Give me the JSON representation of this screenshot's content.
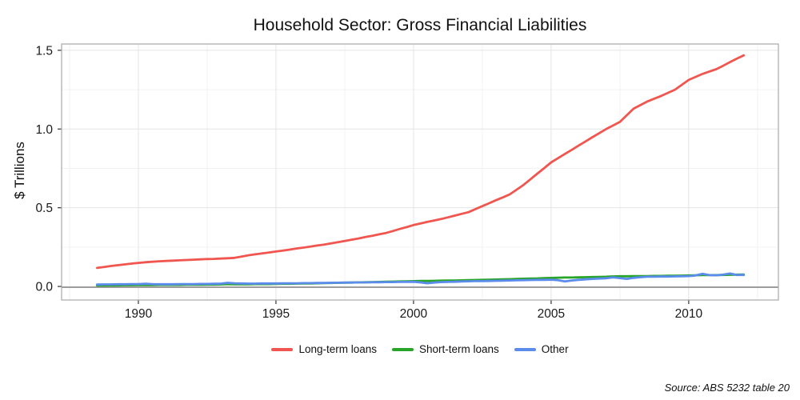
{
  "page": {
    "title": "Household Sector: Gross Financial Liabilities",
    "source_note": "Source: ABS 5232 table 20"
  },
  "colors": {
    "major_grid": "#e4e4e4",
    "minor_grid": "#f2f2f2",
    "border": "#a8a8a8",
    "zero_line": "#8c8c8c",
    "tick": "#333333",
    "text": "#1a1a1a"
  },
  "chart_data": {
    "type": "line",
    "title": "Household Sector: Gross Financial Liabilities",
    "xlabel": "",
    "ylabel": "$ Trillions",
    "xlim": [
      1987.21,
      2013.26
    ],
    "ylim": [
      -0.086,
      1.54
    ],
    "grid": true,
    "legend_position": "bottom",
    "x_ticks": [
      1990,
      1995,
      2000,
      2005,
      2010
    ],
    "x_tick_labels": [
      "1990",
      "1995",
      "2000",
      "2005",
      "2010"
    ],
    "x_minor_ticks": [
      1987.5,
      1992.5,
      1997.5,
      2002.5,
      2007.5,
      2012.5
    ],
    "y_ticks": [
      0.0,
      0.5,
      1.0,
      1.5
    ],
    "y_tick_labels": [
      "0.0",
      "0.5",
      "1.0",
      "1.5"
    ],
    "y_minor_ticks": [
      0.25,
      0.75,
      1.25
    ],
    "x": [
      1988.5,
      1988.75,
      1989,
      1989.25,
      1989.5,
      1989.75,
      1990,
      1990.25,
      1990.5,
      1990.75,
      1991,
      1991.25,
      1991.5,
      1991.75,
      1992,
      1992.25,
      1992.5,
      1992.75,
      1993,
      1993.25,
      1993.5,
      1993.75,
      1994,
      1994.25,
      1994.5,
      1994.75,
      1995,
      1995.25,
      1995.5,
      1995.75,
      1996,
      1996.25,
      1996.5,
      1996.75,
      1997,
      1997.25,
      1997.5,
      1997.75,
      1998,
      1998.25,
      1998.5,
      1998.75,
      1999,
      1999.25,
      1999.5,
      1999.75,
      2000,
      2000.25,
      2000.5,
      2000.75,
      2001,
      2001.25,
      2001.5,
      2001.75,
      2002,
      2002.25,
      2002.5,
      2002.75,
      2003,
      2003.25,
      2003.5,
      2003.75,
      2004,
      2004.25,
      2004.5,
      2004.75,
      2005,
      2005.25,
      2005.5,
      2005.75,
      2006,
      2006.25,
      2006.5,
      2006.75,
      2007,
      2007.25,
      2007.5,
      2007.75,
      2008,
      2008.25,
      2008.5,
      2008.75,
      2009,
      2009.25,
      2009.5,
      2009.75,
      2010,
      2010.25,
      2010.5,
      2010.75,
      2011,
      2011.25,
      2011.5,
      2011.75,
      2012
    ],
    "series": [
      {
        "name": "Long-term loans",
        "color": "#f0564f",
        "values": [
          0.118,
          0.124,
          0.13,
          0.135,
          0.14,
          0.145,
          0.15,
          0.154,
          0.157,
          0.16,
          0.162,
          0.164,
          0.166,
          0.168,
          0.17,
          0.172,
          0.174,
          0.175,
          0.177,
          0.179,
          0.182,
          0.19,
          0.198,
          0.204,
          0.21,
          0.216,
          0.222,
          0.228,
          0.234,
          0.241,
          0.247,
          0.253,
          0.26,
          0.266,
          0.273,
          0.281,
          0.289,
          0.297,
          0.305,
          0.314,
          0.322,
          0.331,
          0.34,
          0.352,
          0.365,
          0.377,
          0.39,
          0.4,
          0.41,
          0.419,
          0.428,
          0.439,
          0.45,
          0.461,
          0.472,
          0.491,
          0.51,
          0.529,
          0.548,
          0.566,
          0.585,
          0.615,
          0.645,
          0.681,
          0.717,
          0.752,
          0.788,
          0.815,
          0.842,
          0.868,
          0.895,
          0.921,
          0.948,
          0.974,
          1.0,
          1.022,
          1.045,
          1.088,
          1.13,
          1.153,
          1.175,
          1.193,
          1.21,
          1.23,
          1.25,
          1.281,
          1.312,
          1.331,
          1.35,
          1.365,
          1.38,
          1.402,
          1.425,
          1.447,
          1.468
        ]
      },
      {
        "name": "Short-term loans",
        "color": "#28a428",
        "values": [
          0.006,
          0.006,
          0.007,
          0.007,
          0.008,
          0.008,
          0.009,
          0.009,
          0.009,
          0.01,
          0.01,
          0.01,
          0.01,
          0.011,
          0.011,
          0.011,
          0.012,
          0.012,
          0.013,
          0.015,
          0.014,
          0.014,
          0.014,
          0.015,
          0.015,
          0.015,
          0.016,
          0.017,
          0.017,
          0.018,
          0.019,
          0.019,
          0.02,
          0.021,
          0.022,
          0.023,
          0.024,
          0.025,
          0.026,
          0.027,
          0.028,
          0.029,
          0.03,
          0.031,
          0.032,
          0.033,
          0.034,
          0.035,
          0.035,
          0.036,
          0.037,
          0.038,
          0.038,
          0.039,
          0.04,
          0.041,
          0.042,
          0.043,
          0.044,
          0.045,
          0.046,
          0.048,
          0.049,
          0.05,
          0.051,
          0.053,
          0.054,
          0.056,
          0.057,
          0.057,
          0.058,
          0.059,
          0.06,
          0.061,
          0.062,
          0.064,
          0.065,
          0.065,
          0.066,
          0.066,
          0.066,
          0.067,
          0.067,
          0.068,
          0.068,
          0.069,
          0.07,
          0.071,
          0.072,
          0.072,
          0.072,
          0.073,
          0.074,
          0.075,
          0.076
        ]
      },
      {
        "name": "Other",
        "color": "#5b8cec",
        "values": [
          0.012,
          0.013,
          0.013,
          0.014,
          0.014,
          0.015,
          0.015,
          0.017,
          0.015,
          0.014,
          0.014,
          0.014,
          0.015,
          0.015,
          0.015,
          0.016,
          0.016,
          0.017,
          0.018,
          0.023,
          0.02,
          0.019,
          0.018,
          0.018,
          0.019,
          0.019,
          0.019,
          0.02,
          0.02,
          0.02,
          0.021,
          0.021,
          0.022,
          0.022,
          0.023,
          0.024,
          0.025,
          0.025,
          0.026,
          0.026,
          0.027,
          0.027,
          0.028,
          0.028,
          0.029,
          0.029,
          0.03,
          0.026,
          0.02,
          0.025,
          0.028,
          0.029,
          0.03,
          0.032,
          0.033,
          0.034,
          0.034,
          0.035,
          0.036,
          0.037,
          0.038,
          0.039,
          0.04,
          0.041,
          0.042,
          0.042,
          0.043,
          0.04,
          0.032,
          0.038,
          0.042,
          0.045,
          0.048,
          0.05,
          0.052,
          0.058,
          0.053,
          0.048,
          0.055,
          0.059,
          0.062,
          0.062,
          0.063,
          0.063,
          0.064,
          0.065,
          0.066,
          0.07,
          0.08,
          0.072,
          0.071,
          0.075,
          0.082,
          0.073,
          0.073
        ]
      }
    ],
    "zero_line": true
  }
}
